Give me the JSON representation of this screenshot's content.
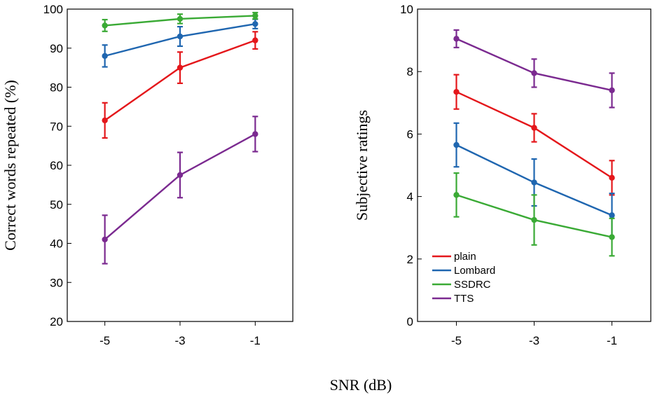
{
  "figure": {
    "xlabel": "SNR (dB)"
  },
  "colors": {
    "plain": "#e4171b",
    "Lombard": "#1f66b0",
    "SSDRC": "#3aaa35",
    "TTS": "#7b2a90"
  },
  "chart_data": [
    {
      "type": "line",
      "title": "",
      "xlabel": "SNR (dB)",
      "ylabel": "Correct words repeated (%)",
      "x": [
        -5,
        -3,
        -1
      ],
      "xticks": [
        "-5",
        "-3",
        "-1"
      ],
      "xlim": [
        -6,
        0
      ],
      "ylim": [
        20,
        100
      ],
      "yticks": [
        "20",
        "30",
        "40",
        "50",
        "60",
        "70",
        "80",
        "90",
        "100"
      ],
      "grid": false,
      "series": [
        {
          "name": "plain",
          "values": [
            71.5,
            85,
            92
          ],
          "errors": [
            4.5,
            4,
            2.2
          ]
        },
        {
          "name": "Lombard",
          "values": [
            88,
            93,
            96.2
          ],
          "errors": [
            2.8,
            2.5,
            1.2
          ]
        },
        {
          "name": "SSDRC",
          "values": [
            95.8,
            97.5,
            98.3
          ],
          "errors": [
            1.5,
            1.2,
            0.8
          ]
        },
        {
          "name": "TTS",
          "values": [
            41,
            57.5,
            68
          ],
          "errors": [
            6.2,
            5.8,
            4.5
          ]
        }
      ]
    },
    {
      "type": "line",
      "title": "",
      "xlabel": "SNR (dB)",
      "ylabel": "Subjective ratings",
      "x": [
        -5,
        -3,
        -1
      ],
      "xticks": [
        "-5",
        "-3",
        "-1"
      ],
      "xlim": [
        -6,
        0
      ],
      "ylim": [
        0,
        10
      ],
      "yticks": [
        "0",
        "2",
        "4",
        "6",
        "8",
        "10"
      ],
      "grid": false,
      "legend": {
        "position": "bottom-left",
        "entries": [
          "plain",
          "Lombard",
          "SSDRC",
          "TTS"
        ]
      },
      "series": [
        {
          "name": "plain",
          "values": [
            7.35,
            6.2,
            4.6
          ],
          "errors": [
            0.55,
            0.45,
            0.55
          ]
        },
        {
          "name": "Lombard",
          "values": [
            5.65,
            4.45,
            3.4
          ],
          "errors": [
            0.7,
            0.75,
            0.7
          ]
        },
        {
          "name": "SSDRC",
          "values": [
            4.05,
            3.25,
            2.7
          ],
          "errors": [
            0.7,
            0.8,
            0.6
          ]
        },
        {
          "name": "TTS",
          "values": [
            9.05,
            7.95,
            7.4
          ],
          "errors": [
            0.28,
            0.45,
            0.55
          ]
        }
      ]
    }
  ]
}
